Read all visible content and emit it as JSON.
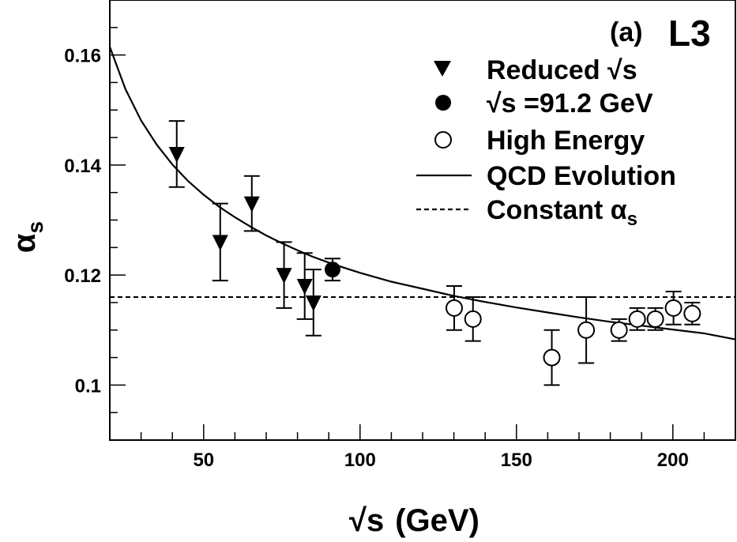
{
  "chart_data": {
    "type": "scatter",
    "panel_label": "(a)",
    "experiment": "L3",
    "xlabel": "√s",
    "xlabel_unit": "(GeV)",
    "ylabel": "α",
    "ylabel_sub": "s",
    "xlim": [
      20,
      220
    ],
    "ylim": [
      0.09,
      0.17
    ],
    "xticks": [
      50,
      100,
      150,
      200
    ],
    "xtick_labels": [
      "50",
      "100",
      "150",
      "200"
    ],
    "yticks": [
      0.1,
      0.12,
      0.14,
      0.16
    ],
    "ytick_labels": [
      "0.1",
      "0.12",
      "0.14",
      "0.16"
    ],
    "legend_position": "top-right",
    "legend": [
      {
        "key": "reduced",
        "marker": "down-triangle",
        "label": "Reduced √s"
      },
      {
        "key": "z",
        "marker": "filled-circle",
        "label": "√s =91.2 GeV"
      },
      {
        "key": "high",
        "marker": "open-circle",
        "label": "High Energy"
      },
      {
        "key": "qcd",
        "marker": "solid-line",
        "label": "QCD Evolution"
      },
      {
        "key": "const",
        "marker": "dashed-line",
        "label": "Constant α",
        "label_sub": "s"
      }
    ],
    "series": [
      {
        "key": "reduced",
        "marker": "down-triangle",
        "points": [
          {
            "x": 41.4,
            "y": 0.142,
            "err": 0.006
          },
          {
            "x": 55.3,
            "y": 0.126,
            "err": 0.007
          },
          {
            "x": 65.4,
            "y": 0.133,
            "err": 0.005
          },
          {
            "x": 75.7,
            "y": 0.12,
            "err": 0.006
          },
          {
            "x": 82.3,
            "y": 0.118,
            "err": 0.006
          },
          {
            "x": 85.1,
            "y": 0.115,
            "err": 0.006
          }
        ]
      },
      {
        "key": "z",
        "marker": "filled-circle",
        "points": [
          {
            "x": 91.2,
            "y": 0.121,
            "err": 0.002
          }
        ]
      },
      {
        "key": "high",
        "marker": "open-circle",
        "points": [
          {
            "x": 130.1,
            "y": 0.114,
            "err": 0.004
          },
          {
            "x": 136.1,
            "y": 0.112,
            "err": 0.004
          },
          {
            "x": 161.3,
            "y": 0.105,
            "err": 0.005
          },
          {
            "x": 172.3,
            "y": 0.11,
            "err": 0.006
          },
          {
            "x": 182.8,
            "y": 0.11,
            "err": 0.002
          },
          {
            "x": 188.6,
            "y": 0.112,
            "err": 0.002
          },
          {
            "x": 194.4,
            "y": 0.112,
            "err": 0.002
          },
          {
            "x": 200.2,
            "y": 0.114,
            "err": 0.003
          },
          {
            "x": 206.2,
            "y": 0.113,
            "err": 0.002
          }
        ]
      }
    ],
    "qcd_curve": {
      "key": "qcd",
      "style": "solid",
      "x": [
        20,
        25,
        30,
        35,
        40,
        45,
        50,
        55,
        60,
        65,
        70,
        75,
        80,
        85,
        91.2,
        100,
        110,
        120,
        130,
        140,
        150,
        160,
        170,
        180,
        190,
        200,
        210,
        220
      ],
      "y": [
        0.1615,
        0.1538,
        0.1481,
        0.1437,
        0.1401,
        0.1371,
        0.1346,
        0.1324,
        0.1305,
        0.1288,
        0.1272,
        0.1258,
        0.1245,
        0.1233,
        0.122,
        0.1204,
        0.1188,
        0.1175,
        0.1162,
        0.1151,
        0.1141,
        0.1132,
        0.1123,
        0.1115,
        0.1108,
        0.1101,
        0.1094,
        0.1083
      ]
    },
    "constant_line": {
      "key": "const",
      "style": "dashed",
      "y": 0.116
    }
  }
}
